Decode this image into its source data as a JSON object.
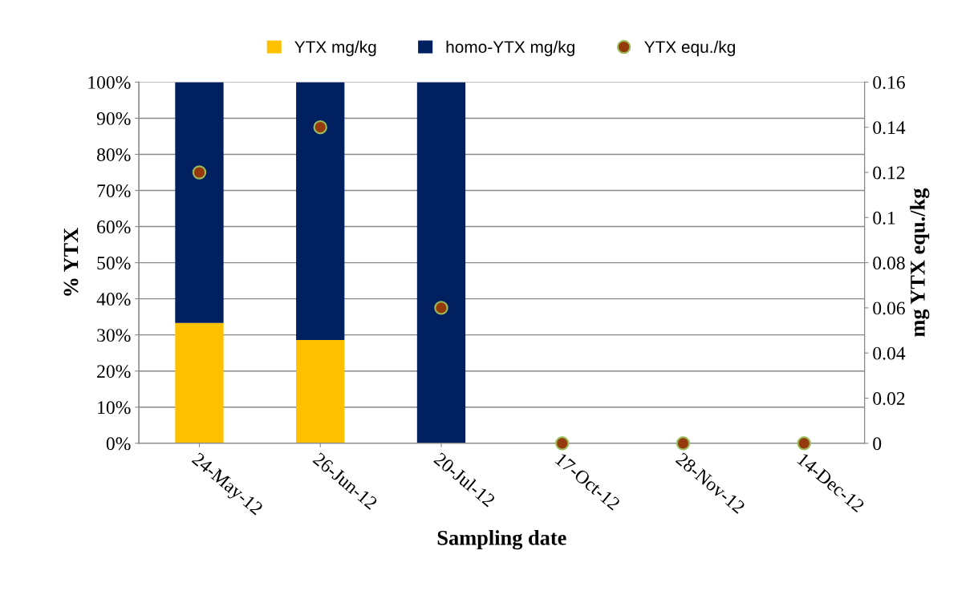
{
  "chart_data": {
    "type": "bar",
    "stacked": true,
    "xlabel": "Sampling date",
    "ylabel": "% YTX",
    "y2label": "mg YTX equ./kg",
    "categories": [
      "24-May-12",
      "26-Jun-12",
      "20-Jul-12",
      "17-Oct-12",
      "28-Nov-12",
      "14-Dec-12"
    ],
    "series": [
      {
        "name": "YTX mg/kg",
        "color": "#ffc000",
        "values": [
          33.3,
          28.6,
          0,
          0,
          0,
          0
        ]
      },
      {
        "name": "homo-YTX mg/kg",
        "color": "#002060",
        "values": [
          66.7,
          71.4,
          100,
          0,
          0,
          0
        ]
      },
      {
        "name": "YTX equ./kg",
        "type": "scatter",
        "axis": "y2",
        "color": "#953a0c",
        "marker": "circle",
        "values": [
          0.12,
          0.14,
          0.06,
          0,
          0,
          0
        ]
      }
    ],
    "ylim": [
      0,
      100
    ],
    "yticks": [
      {
        "value": 0,
        "label": "0%"
      },
      {
        "value": 10,
        "label": "10%"
      },
      {
        "value": 20,
        "label": "20%"
      },
      {
        "value": 30,
        "label": "30%"
      },
      {
        "value": 40,
        "label": "40%"
      },
      {
        "value": 50,
        "label": "50%"
      },
      {
        "value": 60,
        "label": "60%"
      },
      {
        "value": 70,
        "label": "70%"
      },
      {
        "value": 80,
        "label": "80%"
      },
      {
        "value": 90,
        "label": "90%"
      },
      {
        "value": 100,
        "label": "100%"
      }
    ],
    "y2lim": [
      0,
      0.16
    ],
    "y2ticks": [
      0,
      0.02,
      0.04,
      0.06,
      0.08,
      0.1,
      0.12,
      0.14,
      0.16
    ],
    "grid": "y",
    "legend": "top"
  }
}
